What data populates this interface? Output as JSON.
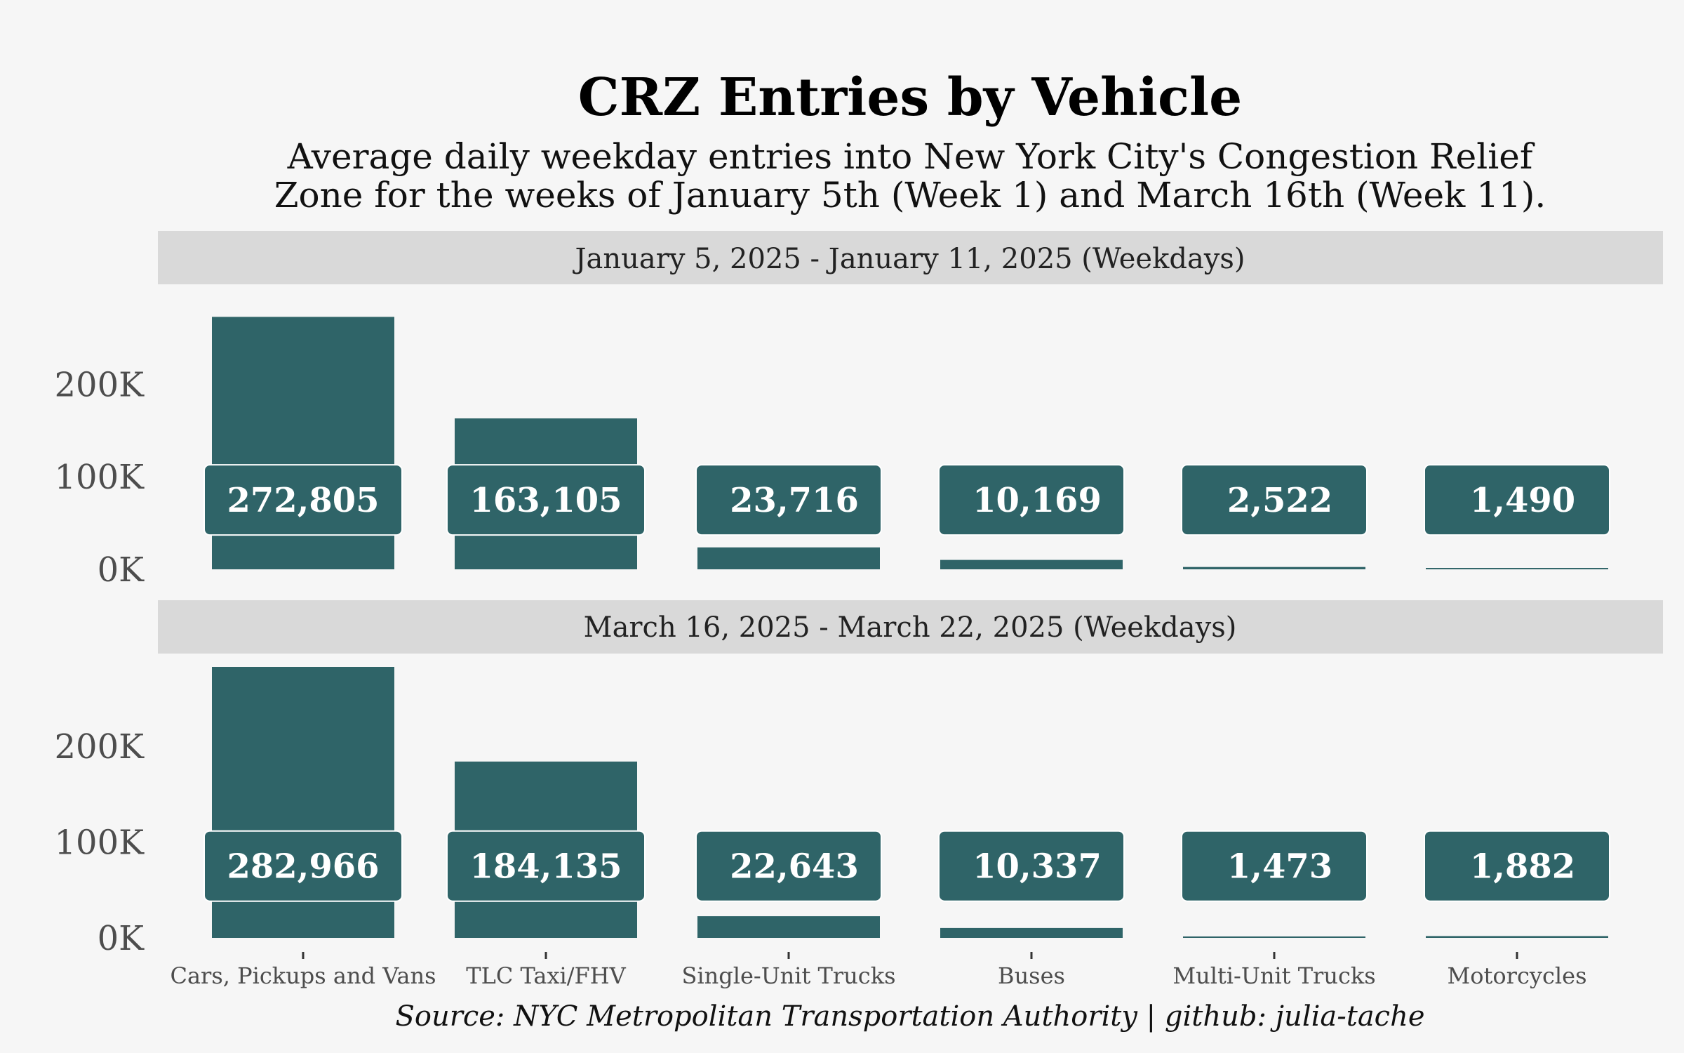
{
  "chart_data": {
    "type": "bar",
    "title": "CRZ Entries by Vehicle",
    "subtitle_lines": [
      "Average daily weekday entries into New York City's Congestion Relief",
      "Zone for the weeks of January 5th (Week 1) and March 16th (Week 11)."
    ],
    "caption": "Source: NYC Metropolitan Transportation Authority | github: julia-tache",
    "categories": [
      "Cars, Pickups and Vans",
      "TLC Taxi/FHV",
      "Single-Unit Trucks",
      "Buses",
      "Multi-Unit Trucks",
      "Motorcycles"
    ],
    "ylim": [
      0,
      282966
    ],
    "yticks": [
      {
        "value": 0,
        "label": "0K"
      },
      {
        "value": 100000,
        "label": "100K"
      },
      {
        "value": 200000,
        "label": "200K"
      }
    ],
    "panels": [
      {
        "strip": "January 5, 2025 - January 11, 2025 (Weekdays)",
        "values": [
          272805,
          163105,
          23716,
          10169,
          2522,
          1490
        ],
        "labels": [
          "272,805",
          "163,105",
          "23,716",
          "10,169",
          "2,522",
          "1,490"
        ]
      },
      {
        "strip": "March 16, 2025 - March 22, 2025 (Weekdays)",
        "values": [
          282966,
          184135,
          22643,
          10337,
          1473,
          1882
        ],
        "labels": [
          "282,966",
          "184,135",
          "22,643",
          "10,337",
          "1,473",
          "1,882"
        ]
      }
    ],
    "label_value": 75000,
    "colors": {
      "bar": "#2f6468",
      "label_box": "#2f6468",
      "label_text": "#ffffff",
      "strip": "#d9d9d9",
      "background": "#f6f6f6"
    }
  }
}
